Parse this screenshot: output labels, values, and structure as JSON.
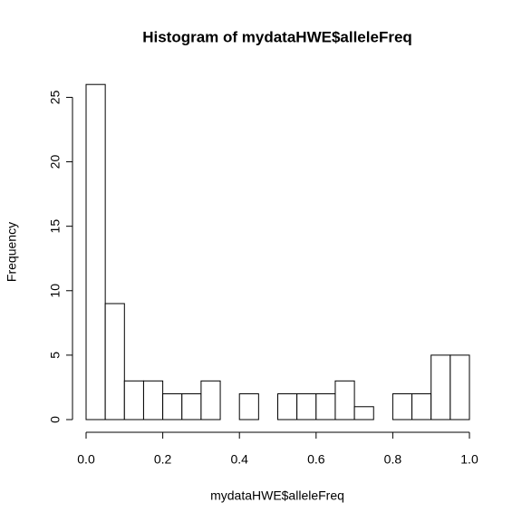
{
  "chart_data": {
    "type": "histogram",
    "title": "Histogram of mydataHWE$alleleFreq",
    "x_label": "mydataHWE$alleleFreq",
    "y_label": "Frequency",
    "bins": [
      0,
      0.05,
      0.1,
      0.15,
      0.2,
      0.25,
      0.3,
      0.35,
      0.4,
      0.45,
      0.5,
      0.55,
      0.6,
      0.65,
      0.7,
      0.75,
      0.8,
      0.85,
      0.9,
      0.95,
      1
    ],
    "counts": [
      26,
      9,
      3,
      3,
      2,
      2,
      3,
      0,
      2,
      0,
      2,
      2,
      2,
      3,
      1,
      0,
      2,
      2,
      5,
      5
    ],
    "color": "#ffffff",
    "edge_color": "#000000",
    "xlim": [
      0,
      1
    ],
    "ylim": [
      0,
      26
    ],
    "xticks": [
      {
        "value": 0,
        "label": "0.0"
      },
      0.2,
      0.4,
      0.6,
      0.8,
      {
        "value": 1,
        "label": "1.0"
      }
    ],
    "yticks": [
      0,
      5,
      10,
      15,
      20,
      25
    ]
  }
}
